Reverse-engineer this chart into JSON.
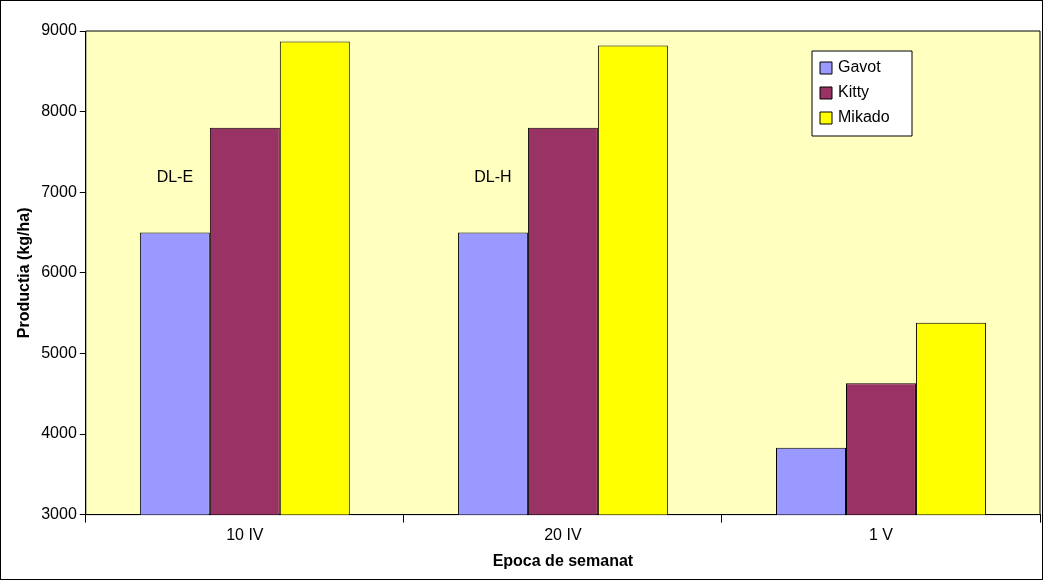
{
  "chart_data": {
    "type": "bar",
    "xlabel": "Epoca de semanat",
    "ylabel": "Productia (kg/ha)",
    "categories": [
      "10 IV",
      "20 IV",
      "1 V"
    ],
    "series": [
      {
        "name": "Gavot",
        "color": "#9999ff",
        "values": [
          6500,
          6500,
          3830
        ]
      },
      {
        "name": "Kitty",
        "color": "#993366",
        "values": [
          7800,
          7800,
          4630
        ]
      },
      {
        "name": "Mikado",
        "color": "#ffff00",
        "values": [
          8870,
          8820,
          5380
        ]
      }
    ],
    "ylim": [
      3000,
      9000
    ],
    "yticks": [
      3000,
      4000,
      5000,
      6000,
      7000,
      8000,
      9000
    ],
    "grid": false,
    "legend": "top right",
    "annotations": [
      "DL-E",
      "DL-H"
    ]
  }
}
